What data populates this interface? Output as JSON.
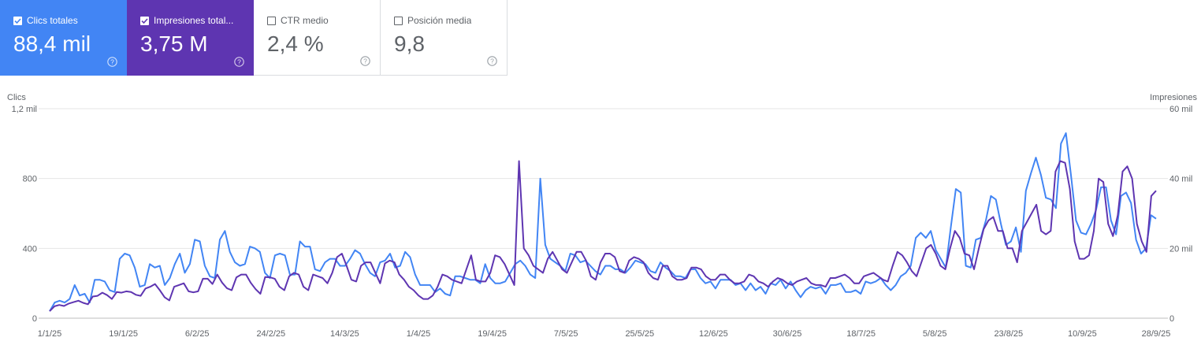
{
  "metric_cards": [
    {
      "label": "Clics totales",
      "value": "88,4 mil",
      "checked": true,
      "color": "#4285f4"
    },
    {
      "label": "Impresiones total...",
      "value": "3,75 M",
      "checked": true,
      "color": "#5e35b1"
    },
    {
      "label": "CTR medio",
      "value": "2,4 %",
      "checked": false,
      "color": "#ffffff"
    },
    {
      "label": "Posición media",
      "value": "9,8",
      "checked": false,
      "color": "#ffffff"
    }
  ],
  "icons": {
    "checkbox": "checkbox-icon",
    "help": "help-circle-icon"
  },
  "chart_data": {
    "type": "line",
    "left_axis_label": "Clics",
    "right_axis_label": "Impresiones",
    "left_ticks": [
      "1,2 mil",
      "800",
      "400",
      "0"
    ],
    "right_ticks": [
      "60 mil",
      "40 mil",
      "20 mil",
      "0"
    ],
    "left_ylim": [
      0,
      1200
    ],
    "right_ylim": [
      0,
      60000
    ],
    "x_tick_labels": [
      "1/1/25",
      "19/1/25",
      "6/2/25",
      "24/2/25",
      "14/3/25",
      "1/4/25",
      "19/4/25",
      "7/5/25",
      "25/5/25",
      "12/6/25",
      "30/6/25",
      "18/7/25",
      "5/8/25",
      "23/8/25",
      "10/9/25",
      "28/9/25"
    ],
    "grid": true,
    "series": [
      {
        "name": "Clics",
        "axis": "left",
        "color": "#4285f4",
        "values": [
          40,
          90,
          100,
          90,
          110,
          190,
          130,
          140,
          90,
          220,
          220,
          210,
          160,
          150,
          340,
          370,
          360,
          290,
          180,
          190,
          310,
          290,
          300,
          190,
          230,
          310,
          370,
          260,
          310,
          450,
          440,
          300,
          240,
          230,
          450,
          500,
          380,
          320,
          300,
          310,
          410,
          400,
          380,
          260,
          230,
          360,
          370,
          360,
          250,
          250,
          440,
          410,
          410,
          280,
          270,
          320,
          340,
          340,
          300,
          300,
          340,
          390,
          370,
          310,
          260,
          240,
          320,
          330,
          370,
          290,
          300,
          380,
          350,
          250,
          190,
          190,
          190,
          150,
          170,
          140,
          130,
          240,
          240,
          230,
          220,
          220,
          200,
          310,
          230,
          200,
          200,
          210,
          260,
          310,
          330,
          300,
          250,
          230,
          800,
          420,
          340,
          320,
          300,
          270,
          370,
          360,
          320,
          330,
          300,
          270,
          250,
          300,
          300,
          280,
          280,
          260,
          290,
          330,
          320,
          310,
          270,
          260,
          320,
          290,
          270,
          240,
          240,
          230,
          280,
          280,
          230,
          200,
          210,
          170,
          220,
          220,
          220,
          190,
          200,
          160,
          200,
          160,
          180,
          140,
          200,
          190,
          220,
          170,
          210,
          160,
          120,
          160,
          180,
          170,
          180,
          140,
          190,
          190,
          200,
          150,
          150,
          160,
          140,
          210,
          200,
          210,
          230,
          190,
          160,
          190,
          240,
          260,
          300,
          460,
          490,
          460,
          500,
          390,
          340,
          290,
          520,
          740,
          720,
          300,
          290,
          450,
          460,
          560,
          700,
          680,
          540,
          420,
          440,
          520,
          380,
          730,
          830,
          920,
          820,
          690,
          680,
          630,
          1000,
          1060,
          820,
          560,
          490,
          480,
          540,
          620,
          750,
          750,
          560,
          480,
          700,
          720,
          660,
          450,
          370,
          400,
          590,
          570
        ]
      },
      {
        "name": "Impresiones",
        "axis": "right",
        "color": "#5e35b1",
        "values": [
          2000,
          3400,
          3800,
          3500,
          4200,
          4600,
          5000,
          4400,
          4000,
          6200,
          6400,
          7300,
          6600,
          5500,
          7500,
          7300,
          7700,
          7500,
          6700,
          6400,
          8500,
          9000,
          9800,
          8000,
          6000,
          5100,
          9000,
          9500,
          10000,
          7700,
          7400,
          7700,
          11300,
          11300,
          9800,
          12500,
          10200,
          8600,
          8000,
          11700,
          12500,
          12500,
          10100,
          8300,
          7000,
          11800,
          11700,
          11300,
          9000,
          8000,
          12000,
          13000,
          12500,
          9000,
          8000,
          12500,
          12000,
          11500,
          10000,
          13000,
          17500,
          18500,
          15000,
          11000,
          10500,
          15000,
          16000,
          16000,
          13000,
          10000,
          15700,
          16500,
          16000,
          12500,
          11000,
          9000,
          8000,
          6500,
          5500,
          5500,
          6500,
          9000,
          12500,
          12000,
          11000,
          10500,
          10000,
          14000,
          18000,
          11000,
          10500,
          10500,
          13000,
          18000,
          17500,
          15500,
          12500,
          9500,
          45000,
          20000,
          18000,
          15000,
          14000,
          13000,
          17000,
          19000,
          16500,
          14000,
          13000,
          16000,
          19000,
          19000,
          16500,
          12000,
          11000,
          16000,
          18500,
          18500,
          17500,
          13500,
          13000,
          16500,
          17500,
          17000,
          16000,
          13000,
          11500,
          11000,
          15000,
          15000,
          12000,
          11000,
          11000,
          11500,
          14500,
          14500,
          14000,
          12000,
          11000,
          11000,
          12500,
          12500,
          11000,
          10000,
          10000,
          10500,
          12500,
          12000,
          10500,
          10000,
          9000,
          10500,
          11500,
          11000,
          10000,
          9500,
          10500,
          11000,
          11500,
          10000,
          9500,
          9500,
          9000,
          11500,
          11500,
          12000,
          12500,
          11500,
          10000,
          10000,
          12000,
          12500,
          13000,
          12000,
          11000,
          10500,
          15000,
          19000,
          18000,
          16000,
          13500,
          12000,
          16000,
          20000,
          21000,
          18500,
          15000,
          14000,
          20000,
          25000,
          23000,
          18500,
          18000,
          14000,
          20000,
          25500,
          28000,
          29000,
          25000,
          25000,
          20000,
          20000,
          16000,
          25000,
          27500,
          30000,
          32500,
          25000,
          24000,
          25000,
          42000,
          45000,
          44500,
          37000,
          22000,
          17000,
          17000,
          18000,
          25000,
          40000,
          39000,
          27000,
          23500,
          29500,
          42000,
          43500,
          40000,
          27000,
          22000,
          19000,
          35000,
          36500
        ]
      }
    ]
  }
}
